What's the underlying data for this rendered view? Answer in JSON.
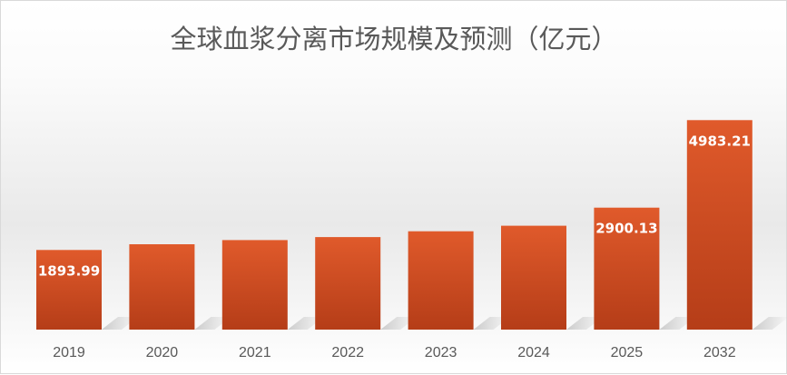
{
  "chart_data": {
    "type": "bar",
    "title": "全球血浆分离市场规模及预测（亿元）",
    "categories": [
      "2019",
      "2020",
      "2021",
      "2022",
      "2023",
      "2024",
      "2025",
      "2032"
    ],
    "values": [
      1893.99,
      2030,
      2130,
      2200,
      2340,
      2470,
      2900.13,
      4983.21
    ],
    "data_labels": [
      "1893.99",
      "",
      "",
      "",
      "",
      "",
      "2900.13",
      "4983.21"
    ],
    "xlabel": "",
    "ylabel": "",
    "ylim": [
      0,
      5400
    ],
    "grid": false,
    "legend": "none",
    "colors": {
      "bar_top": "#e05a2b",
      "bar_bottom": "#b53d18",
      "label": "#ffffff"
    }
  }
}
